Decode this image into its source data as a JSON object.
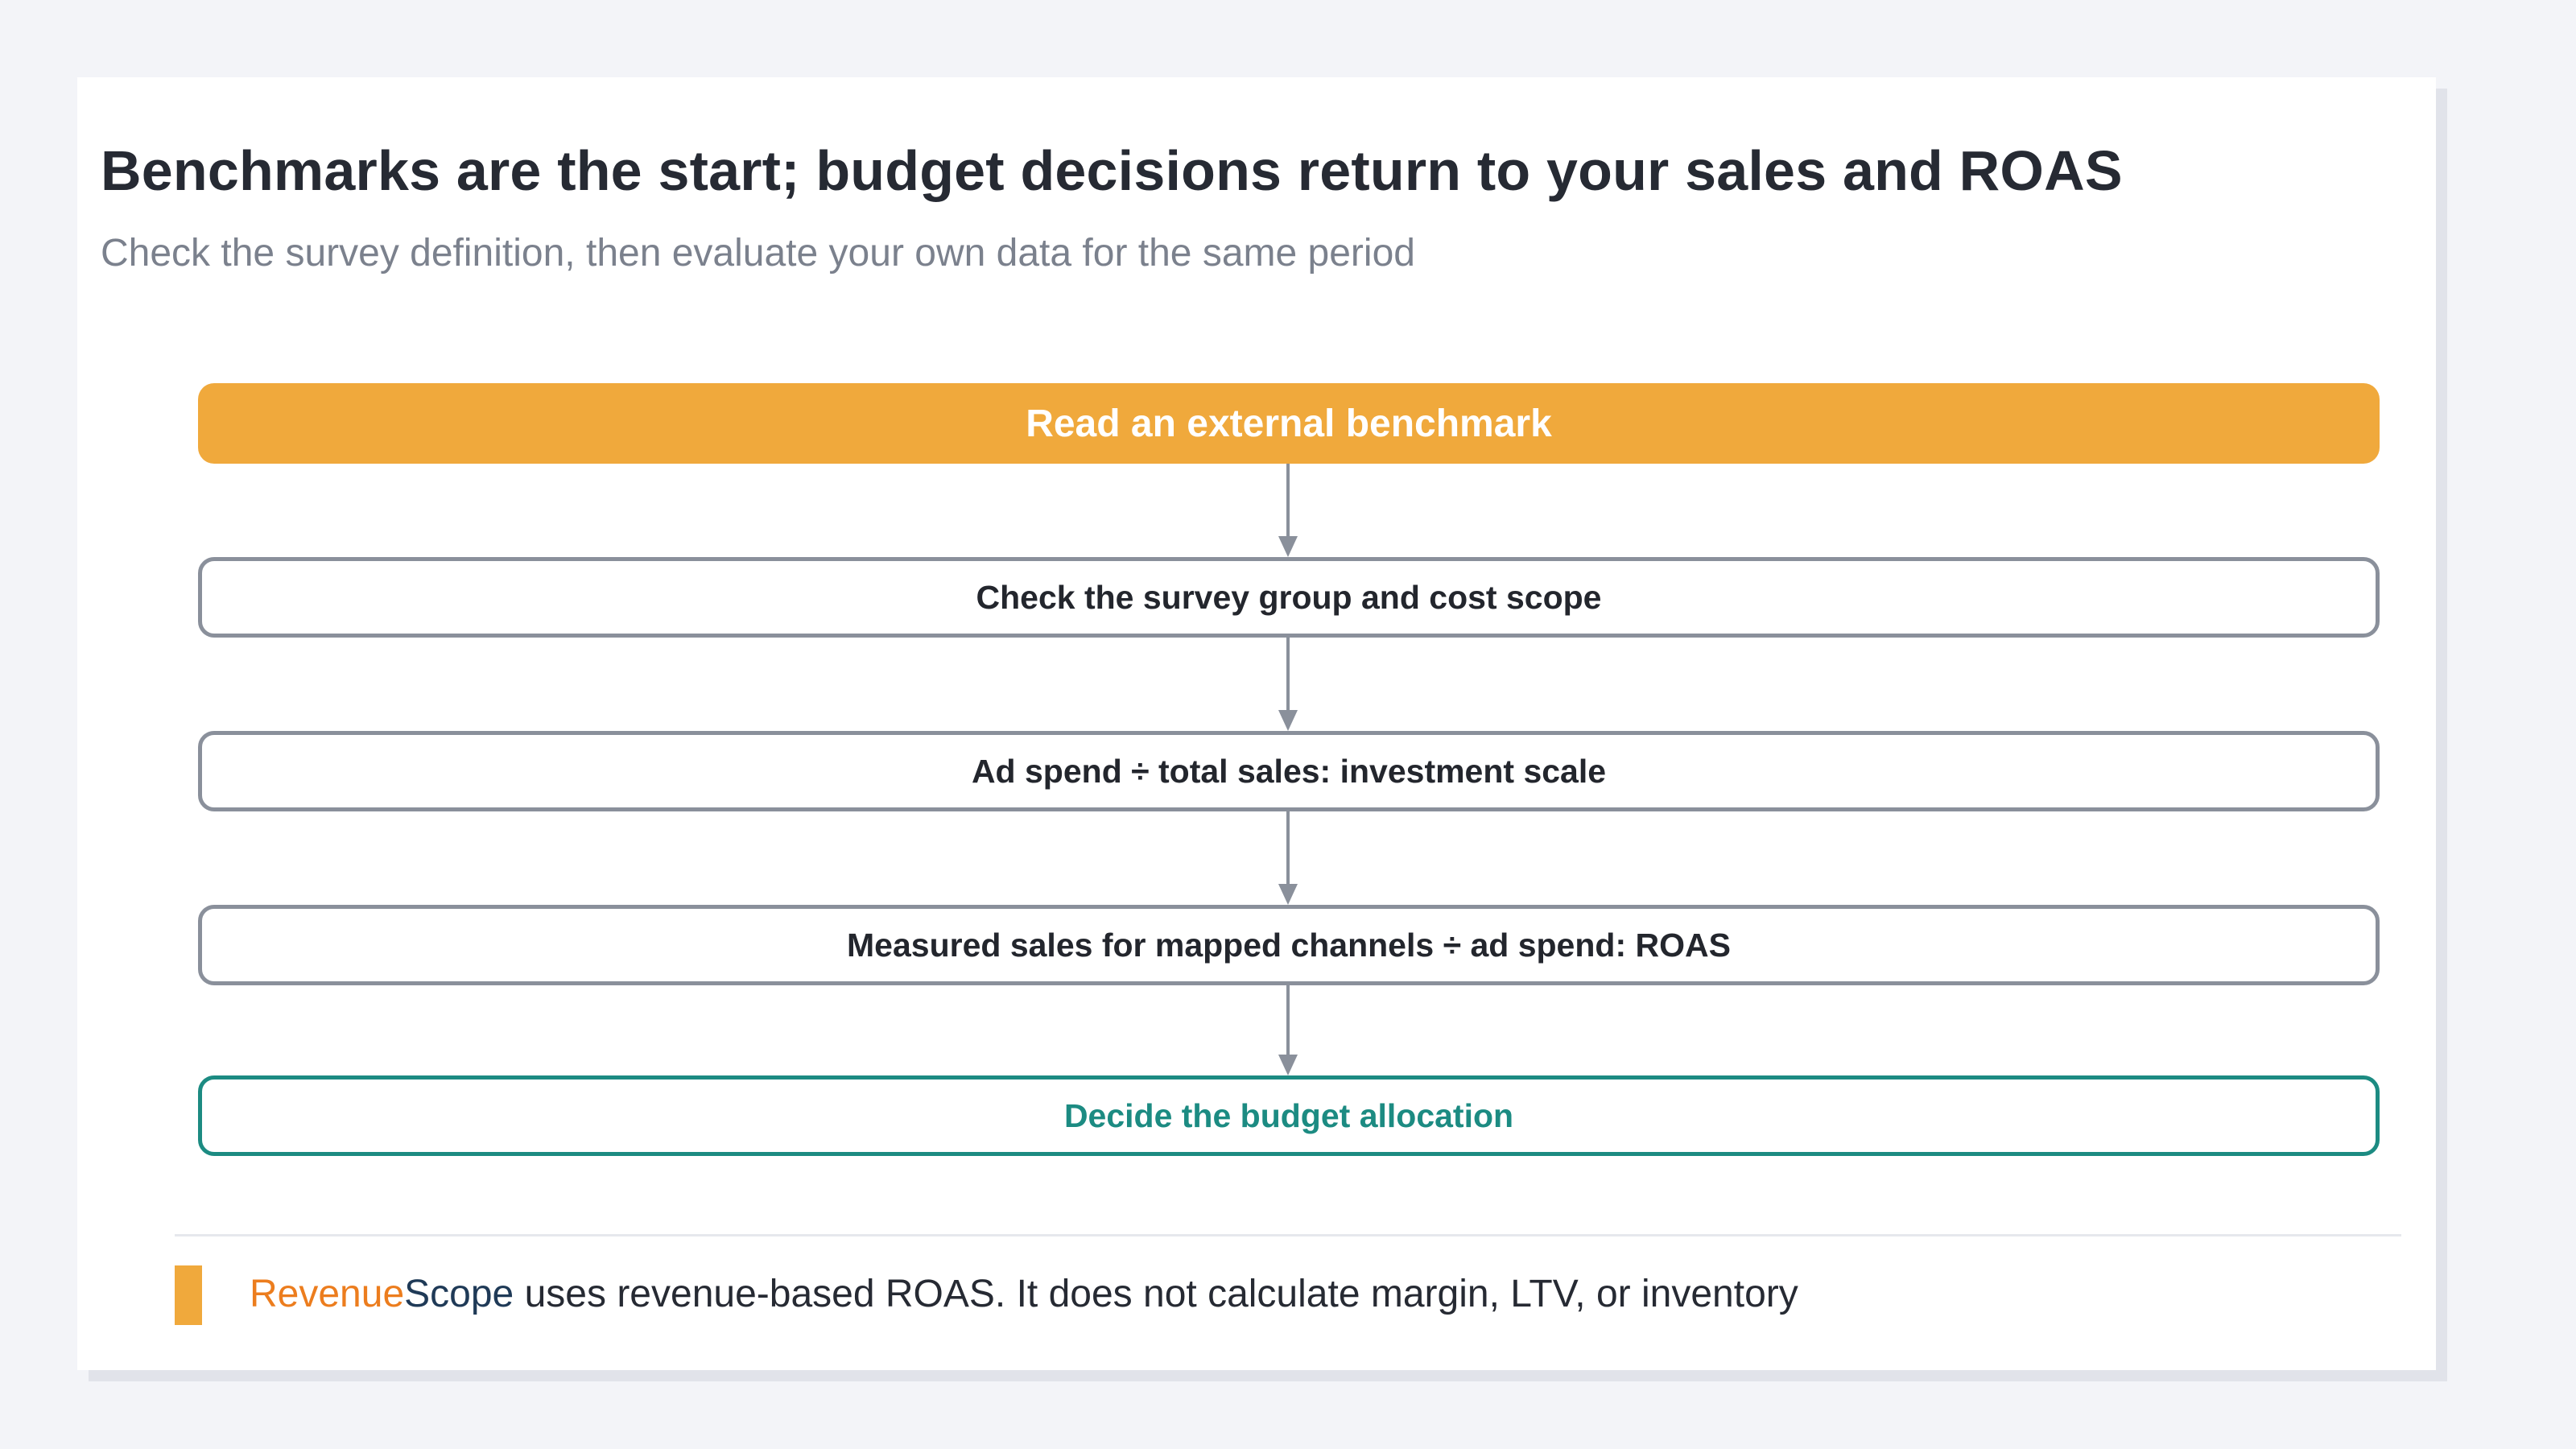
{
  "header": {
    "title": "Benchmarks are the start; budget decisions return to your sales and ROAS",
    "subtitle": "Check the survey definition, then evaluate your own data for the same period"
  },
  "flow": {
    "steps": [
      {
        "label": "Read an external benchmark",
        "style": "primary"
      },
      {
        "label": "Check the survey group and cost scope",
        "style": "neutral"
      },
      {
        "label": "Ad spend ÷ total sales: investment scale",
        "style": "neutral"
      },
      {
        "label": "Measured sales for mapped channels ÷ ad spend: ROAS",
        "style": "neutral"
      },
      {
        "label": "Decide the budget allocation",
        "style": "final"
      }
    ]
  },
  "footer": {
    "brand_part1": "Revenue",
    "brand_part2": "Scope",
    "note": " uses revenue-based ROAS. It does not calculate margin, LTV, or inventory"
  },
  "colors": {
    "background": "#f3f4f8",
    "accent_orange": "#f0a93c",
    "final_teal": "#1c8b82",
    "neutral_border": "#8a909b",
    "brand_orange": "#ec7d1e",
    "brand_navy": "#1f3a57"
  }
}
